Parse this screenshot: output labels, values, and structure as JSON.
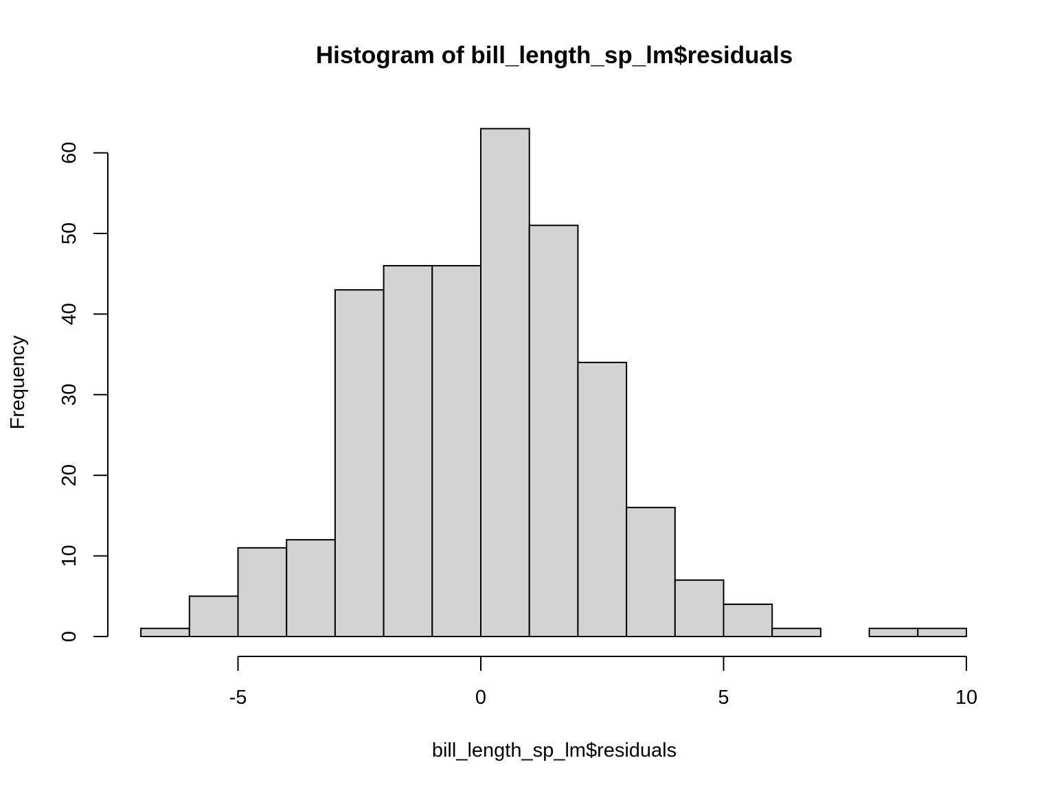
{
  "chart_data": {
    "type": "bar",
    "title": "Histogram of bill_length_sp_lm$residuals",
    "xlabel": "bill_length_sp_lm$residuals",
    "ylabel": "Frequency",
    "bin_edges": [
      -7,
      -6,
      -5,
      -4,
      -3,
      -2,
      -1,
      0,
      1,
      2,
      3,
      4,
      5,
      6,
      7,
      8,
      9,
      10
    ],
    "values": [
      1,
      5,
      11,
      12,
      43,
      46,
      46,
      63,
      51,
      34,
      16,
      7,
      4,
      1,
      0,
      1,
      1
    ],
    "xlim": [
      -7,
      10
    ],
    "ylim": [
      0,
      63
    ],
    "x_ticks": [
      -5,
      0,
      5,
      10
    ],
    "x_tick_labels": [
      "-5",
      "0",
      "5",
      "10"
    ],
    "y_ticks": [
      0,
      10,
      20,
      30,
      40,
      50,
      60
    ],
    "y_tick_labels": [
      "0",
      "10",
      "20",
      "30",
      "40",
      "50",
      "60"
    ],
    "bar_color": "#d3d3d3",
    "grid": false
  }
}
